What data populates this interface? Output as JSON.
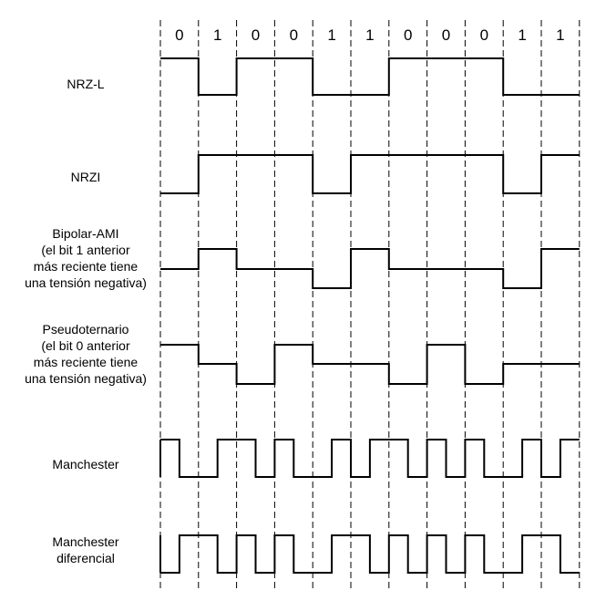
{
  "bits": [
    "0",
    "1",
    "0",
    "0",
    "1",
    "1",
    "0",
    "0",
    "0",
    "1",
    "1"
  ],
  "encodings": [
    {
      "id": "nrz-l",
      "label_lines": [
        "NRZ-L"
      ]
    },
    {
      "id": "nrzi",
      "label_lines": [
        "NRZI"
      ]
    },
    {
      "id": "bipolar-ami",
      "label_lines": [
        "Bipolar-AMI",
        "(el bit 1 anterior",
        "más reciente tiene",
        "una tensión negativa)"
      ]
    },
    {
      "id": "pseudoternario",
      "label_lines": [
        "Pseudoternario",
        "(el bit 0 anterior",
        "más reciente tiene",
        "una tensión negativa)"
      ]
    },
    {
      "id": "manchester",
      "label_lines": [
        "Manchester"
      ]
    },
    {
      "id": "manchester-diferencial",
      "label_lines": [
        "Manchester",
        "diferencial"
      ]
    }
  ]
}
